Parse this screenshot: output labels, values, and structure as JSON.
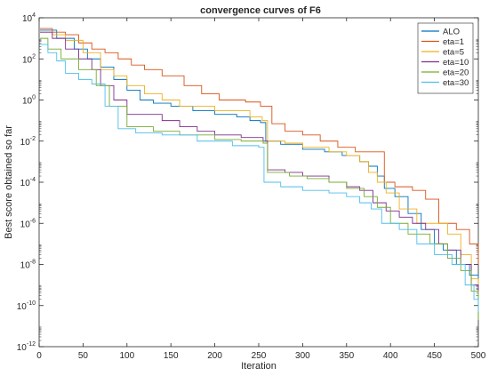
{
  "chart_data": {
    "type": "line",
    "title": "convergence curves of F6",
    "xlabel": "Iteration",
    "ylabel": "Best score obtained so far",
    "xlim": [
      0,
      500
    ],
    "ylim_exponent": [
      -12,
      4
    ],
    "yscale": "log",
    "grid": false,
    "legend_position": "top-right",
    "x_ticks": [
      "0",
      "50",
      "100",
      "150",
      "200",
      "250",
      "300",
      "350",
      "400",
      "450",
      "500"
    ],
    "y_tick_exponents": [
      "-12",
      "-10",
      "-8",
      "-6",
      "-4",
      "-2",
      "0",
      "2",
      "4"
    ],
    "series": [
      {
        "name": "ALO",
        "color": "#0072BD",
        "points": [
          [
            1,
            2500.0
          ],
          [
            20,
            1000.0
          ],
          [
            40,
            300.0
          ],
          [
            55,
            100.0
          ],
          [
            70,
            40.0
          ],
          [
            85,
            10
          ],
          [
            100,
            3
          ],
          [
            115,
            1
          ],
          [
            130,
            0.7
          ],
          [
            150,
            0.5
          ],
          [
            175,
            0.3
          ],
          [
            200,
            0.2
          ],
          [
            225,
            0.15
          ],
          [
            240,
            0.1
          ],
          [
            252,
            0.08
          ],
          [
            258,
            0.01
          ],
          [
            275,
            0.007
          ],
          [
            300,
            0.004
          ],
          [
            325,
            0.003
          ],
          [
            345,
            0.002
          ],
          [
            365,
            0.001
          ],
          [
            375,
            0.0006
          ],
          [
            385,
            0.0002
          ],
          [
            393,
            5e-05
          ],
          [
            405,
            2e-05
          ],
          [
            420,
            3e-06
          ],
          [
            435,
            5e-07
          ],
          [
            450,
            1e-07
          ],
          [
            460,
            5e-08
          ],
          [
            475,
            1e-08
          ],
          [
            490,
            3e-09
          ],
          [
            500,
            1e-09
          ]
        ]
      },
      {
        "name": "eta=1",
        "color": "#D95319",
        "points": [
          [
            1,
            3000.0
          ],
          [
            15,
            2000.0
          ],
          [
            30,
            1500.0
          ],
          [
            45,
            600.0
          ],
          [
            60,
            300.0
          ],
          [
            75,
            200.0
          ],
          [
            90,
            100.0
          ],
          [
            105,
            50
          ],
          [
            120,
            30
          ],
          [
            140,
            15
          ],
          [
            165,
            5
          ],
          [
            185,
            2
          ],
          [
            205,
            1
          ],
          [
            235,
            0.8
          ],
          [
            252,
            0.5
          ],
          [
            265,
            0.07
          ],
          [
            280,
            0.03
          ],
          [
            300,
            0.02
          ],
          [
            320,
            0.01
          ],
          [
            340,
            0.005
          ],
          [
            360,
            0.003
          ],
          [
            380,
            0.003
          ],
          [
            393,
            0.0001
          ],
          [
            405,
            6e-05
          ],
          [
            425,
            4e-05
          ],
          [
            440,
            1.5e-05
          ],
          [
            455,
            1e-06
          ],
          [
            475,
            5e-07
          ],
          [
            490,
            1e-07
          ],
          [
            500,
            1e-08
          ]
        ]
      },
      {
        "name": "eta=5",
        "color": "#EDB120",
        "points": [
          [
            1,
            2000.0
          ],
          [
            15,
            1500.0
          ],
          [
            30,
            800.0
          ],
          [
            50,
            200.0
          ],
          [
            70,
            30
          ],
          [
            85,
            15
          ],
          [
            100,
            5
          ],
          [
            120,
            2
          ],
          [
            140,
            1
          ],
          [
            160,
            0.5
          ],
          [
            200,
            0.3
          ],
          [
            240,
            0.15
          ],
          [
            254,
            0.1
          ],
          [
            260,
            0.01
          ],
          [
            280,
            0.008
          ],
          [
            300,
            0.005
          ],
          [
            330,
            0.003
          ],
          [
            350,
            0.002
          ],
          [
            365,
            0.001
          ],
          [
            375,
            0.0003
          ],
          [
            385,
            0.0001
          ],
          [
            395,
            3e-05
          ],
          [
            410,
            5e-06
          ],
          [
            430,
            1e-06
          ],
          [
            450,
            1e-06
          ],
          [
            465,
            3e-07
          ],
          [
            480,
            3e-08
          ],
          [
            492,
            2e-09
          ],
          [
            500,
            5e-10
          ]
        ]
      },
      {
        "name": "eta=10",
        "color": "#7E2F8E",
        "points": [
          [
            1,
            2000.0
          ],
          [
            15,
            1000.0
          ],
          [
            30,
            300.0
          ],
          [
            45,
            100.0
          ],
          [
            60,
            30.0
          ],
          [
            70,
            5
          ],
          [
            85,
            1
          ],
          [
            100,
            0.2
          ],
          [
            140,
            0.1
          ],
          [
            160,
            0.05
          ],
          [
            180,
            0.03
          ],
          [
            200,
            0.02
          ],
          [
            230,
            0.015
          ],
          [
            255,
            0.01
          ],
          [
            260,
            0.0004
          ],
          [
            280,
            0.0003
          ],
          [
            300,
            0.0002
          ],
          [
            330,
            0.0001
          ],
          [
            350,
            6e-05
          ],
          [
            365,
            4e-05
          ],
          [
            380,
            1e-05
          ],
          [
            395,
            4e-06
          ],
          [
            410,
            2e-06
          ],
          [
            425,
            1e-06
          ],
          [
            440,
            5e-07
          ],
          [
            455,
            1e-07
          ],
          [
            465,
            5e-08
          ],
          [
            480,
            1e-08
          ],
          [
            492,
            1e-09
          ],
          [
            500,
            2e-10
          ]
        ]
      },
      {
        "name": "eta=20",
        "color": "#77AC30",
        "points": [
          [
            1,
            1000.0
          ],
          [
            10,
            300.0
          ],
          [
            25,
            100.0
          ],
          [
            45,
            30
          ],
          [
            65,
            5
          ],
          [
            80,
            0.5
          ],
          [
            100,
            0.05
          ],
          [
            130,
            0.03
          ],
          [
            160,
            0.02
          ],
          [
            200,
            0.012
          ],
          [
            230,
            0.01
          ],
          [
            255,
            0.008
          ],
          [
            260,
            0.0003
          ],
          [
            285,
            0.0002
          ],
          [
            305,
            0.00015
          ],
          [
            330,
            0.0001
          ],
          [
            350,
            5e-05
          ],
          [
            370,
            2e-05
          ],
          [
            385,
            6e-06
          ],
          [
            400,
            1e-06
          ],
          [
            420,
            3e-07
          ],
          [
            445,
            1e-07
          ],
          [
            465,
            2e-08
          ],
          [
            480,
            5e-09
          ],
          [
            492,
            5e-10
          ],
          [
            500,
            2e-11
          ]
        ]
      },
      {
        "name": "eta=30",
        "color": "#4DBEEE",
        "points": [
          [
            1,
            500.0
          ],
          [
            10,
            200.0
          ],
          [
            20,
            80
          ],
          [
            30,
            20
          ],
          [
            45,
            10
          ],
          [
            60,
            6
          ],
          [
            75,
            0.5
          ],
          [
            90,
            0.04
          ],
          [
            110,
            0.025
          ],
          [
            140,
            0.02
          ],
          [
            180,
            0.01
          ],
          [
            220,
            0.006
          ],
          [
            250,
            0.005
          ],
          [
            256,
            0.0001
          ],
          [
            275,
            6e-05
          ],
          [
            300,
            4e-05
          ],
          [
            330,
            3e-05
          ],
          [
            350,
            2e-05
          ],
          [
            365,
            1e-05
          ],
          [
            378,
            5e-06
          ],
          [
            390,
            1e-06
          ],
          [
            410,
            5e-07
          ],
          [
            430,
            1e-07
          ],
          [
            450,
            3e-08
          ],
          [
            470,
            1e-08
          ],
          [
            485,
            1e-09
          ],
          [
            495,
            2e-10
          ],
          [
            500,
            5e-11
          ]
        ]
      }
    ]
  }
}
